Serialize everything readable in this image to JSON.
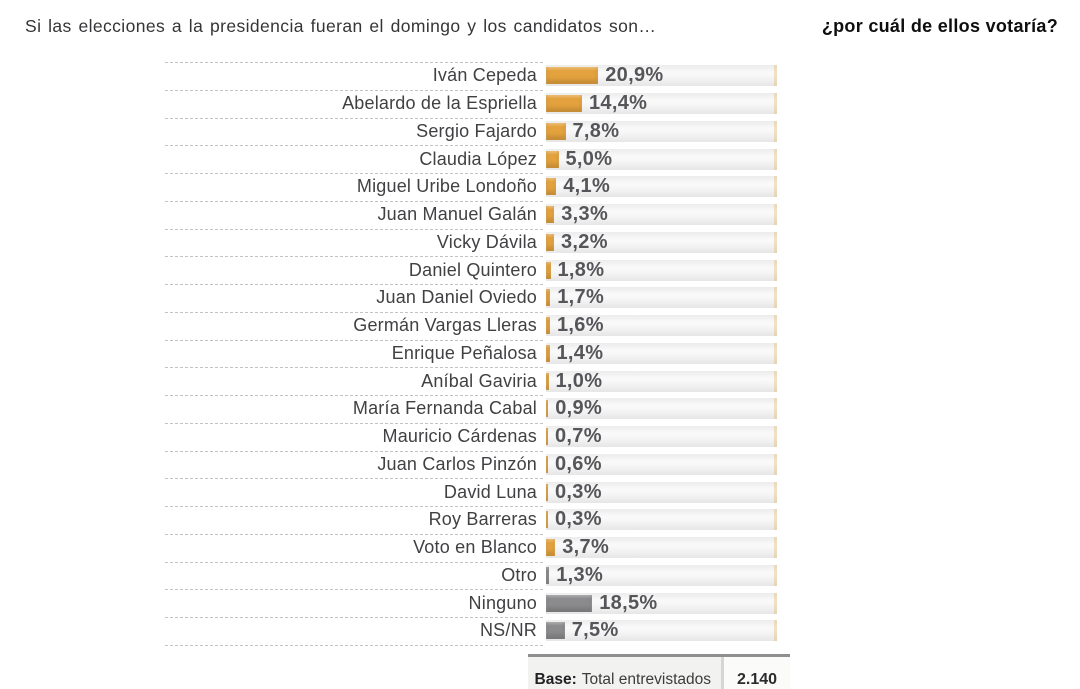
{
  "header": {
    "question": "Si las elecciones a la presidencia fueran el domingo y los candidatos son…",
    "question_bold": "¿por cuál de ellos votaría?"
  },
  "chart_data": {
    "type": "bar",
    "orientation": "horizontal",
    "value_suffix": "%",
    "decimal_separator": ",",
    "axis_range": [
      0,
      100
    ],
    "grid": false,
    "legend": false,
    "colors": {
      "orange": "#E4A23E",
      "gray": "#8B8B8D",
      "track": "#EFEFEF",
      "value_text": "#56565A",
      "name_text": "#414043"
    },
    "rows": [
      {
        "name": "Iván Cepeda",
        "value": 20.9,
        "label": "20,9%",
        "color": "orange"
      },
      {
        "name": "Abelardo de la Espriella",
        "value": 14.4,
        "label": "14,4%",
        "color": "orange"
      },
      {
        "name": "Sergio Fajardo",
        "value": 7.8,
        "label": "7,8%",
        "color": "orange"
      },
      {
        "name": "Claudia López",
        "value": 5.0,
        "label": "5,0%",
        "color": "orange"
      },
      {
        "name": "Miguel Uribe Londoño",
        "value": 4.1,
        "label": "4,1%",
        "color": "orange"
      },
      {
        "name": "Juan Manuel Galán",
        "value": 3.3,
        "label": "3,3%",
        "color": "orange"
      },
      {
        "name": "Vicky Dávila",
        "value": 3.2,
        "label": "3,2%",
        "color": "orange"
      },
      {
        "name": "Daniel Quintero",
        "value": 1.8,
        "label": "1,8%",
        "color": "orange"
      },
      {
        "name": "Juan Daniel Oviedo",
        "value": 1.7,
        "label": "1,7%",
        "color": "orange"
      },
      {
        "name": "Germán Vargas Lleras",
        "value": 1.6,
        "label": "1,6%",
        "color": "orange"
      },
      {
        "name": "Enrique Peñalosa",
        "value": 1.4,
        "label": "1,4%",
        "color": "orange"
      },
      {
        "name": "Aníbal Gaviria",
        "value": 1.0,
        "label": "1,0%",
        "color": "orange"
      },
      {
        "name": "María Fernanda Cabal",
        "value": 0.9,
        "label": "0,9%",
        "color": "orange"
      },
      {
        "name": "Mauricio Cárdenas",
        "value": 0.7,
        "label": "0,7%",
        "color": "orange"
      },
      {
        "name": "Juan Carlos Pinzón",
        "value": 0.6,
        "label": "0,6%",
        "color": "orange"
      },
      {
        "name": "David Luna",
        "value": 0.3,
        "label": "0,3%",
        "color": "orange"
      },
      {
        "name": "Roy Barreras",
        "value": 0.3,
        "label": "0,3%",
        "color": "orange"
      },
      {
        "name": "Voto en Blanco",
        "value": 3.7,
        "label": "3,7%",
        "color": "orange"
      },
      {
        "name": "Otro",
        "value": 1.3,
        "label": "1,3%",
        "color": "gray"
      },
      {
        "name": "Ninguno",
        "value": 18.5,
        "label": "18,5%",
        "color": "gray"
      },
      {
        "name": "NS/NR",
        "value": 7.5,
        "label": "7,5%",
        "color": "gray"
      }
    ]
  },
  "footer": {
    "base_label": "Base:",
    "base_text": "Total entrevistados",
    "base_value": "2.140"
  }
}
